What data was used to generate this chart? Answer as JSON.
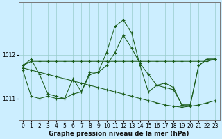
{
  "xlabel": "Graphe pression niveau de la mer (hPa)",
  "background_color": "#cceeff",
  "plot_bg_color": "#cceeff",
  "grid_color": "#99cccc",
  "line_color": "#1a5c1a",
  "marker": "+",
  "xlim": [
    -0.5,
    23.5
  ],
  "ylim": [
    1010.5,
    1013.2
  ],
  "yticks": [
    1011,
    1012
  ],
  "xticks": [
    0,
    1,
    2,
    3,
    4,
    5,
    6,
    7,
    8,
    9,
    10,
    11,
    12,
    13,
    14,
    15,
    16,
    17,
    18,
    19,
    20,
    21,
    22,
    23
  ],
  "tick_fontsize": 5.5,
  "xlabel_fontsize": 6.5,
  "curves": [
    [
      1011.75,
      1011.85,
      1011.85,
      1011.85,
      1011.85,
      1011.85,
      1011.85,
      1011.85,
      1011.85,
      1011.85,
      1011.85,
      1011.85,
      1011.85,
      1011.85,
      1011.85,
      1011.85,
      1011.85,
      1011.85,
      1011.85,
      1011.85,
      1011.85,
      1011.85,
      1011.85,
      1011.9
    ],
    [
      1011.7,
      1011.65,
      1011.6,
      1011.55,
      1011.5,
      1011.45,
      1011.4,
      1011.35,
      1011.3,
      1011.25,
      1011.2,
      1011.15,
      1011.1,
      1011.05,
      1011.0,
      1010.95,
      1010.9,
      1010.85,
      1010.82,
      1010.8,
      1010.82,
      1010.85,
      1010.9,
      1010.95
    ],
    [
      1011.75,
      1011.9,
      1011.55,
      1011.1,
      1011.05,
      1011.0,
      1011.1,
      1011.15,
      1011.55,
      1011.6,
      1011.75,
      1012.05,
      1012.45,
      1012.15,
      1011.8,
      1011.55,
      1011.3,
      1011.25,
      1011.2,
      1010.85,
      1010.85,
      1011.75,
      1011.9,
      1011.9
    ],
    [
      1011.65,
      1011.05,
      1011.0,
      1011.05,
      1011.0,
      1011.0,
      1011.45,
      1011.15,
      1011.6,
      1011.6,
      1012.05,
      1012.65,
      1012.8,
      1012.5,
      1011.75,
      1011.15,
      1011.3,
      1011.35,
      1011.25,
      1010.85,
      1010.85,
      1011.75,
      1011.9,
      1011.9
    ]
  ]
}
